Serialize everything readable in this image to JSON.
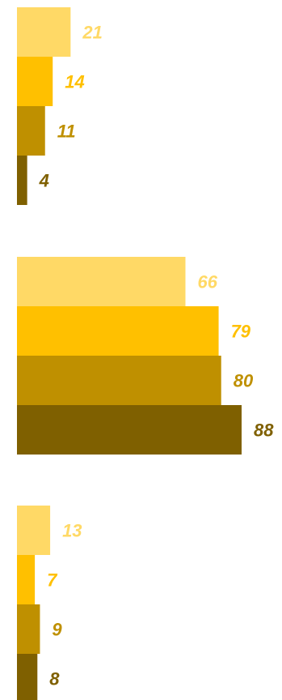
{
  "chart_data": [
    {
      "type": "bar",
      "orientation": "horizontal",
      "values": [
        21,
        14,
        11,
        4
      ],
      "colors": [
        "#FFD966",
        "#FFC000",
        "#BF9000",
        "#7F6000"
      ],
      "data_labels": [
        "21",
        "14",
        "11",
        "4"
      ],
      "xlim": [
        0,
        88
      ]
    },
    {
      "type": "bar",
      "orientation": "horizontal",
      "values": [
        66,
        79,
        80,
        88
      ],
      "colors": [
        "#FFD966",
        "#FFC000",
        "#BF9000",
        "#7F6000"
      ],
      "data_labels": [
        "66",
        "79",
        "80",
        "88"
      ],
      "xlim": [
        0,
        88
      ]
    },
    {
      "type": "bar",
      "orientation": "horizontal",
      "values": [
        13,
        7,
        9,
        8
      ],
      "colors": [
        "#FFD966",
        "#FFC000",
        "#BF9000",
        "#7F6000"
      ],
      "data_labels": [
        "13",
        "7",
        "9",
        "8"
      ],
      "xlim": [
        0,
        88
      ]
    }
  ]
}
